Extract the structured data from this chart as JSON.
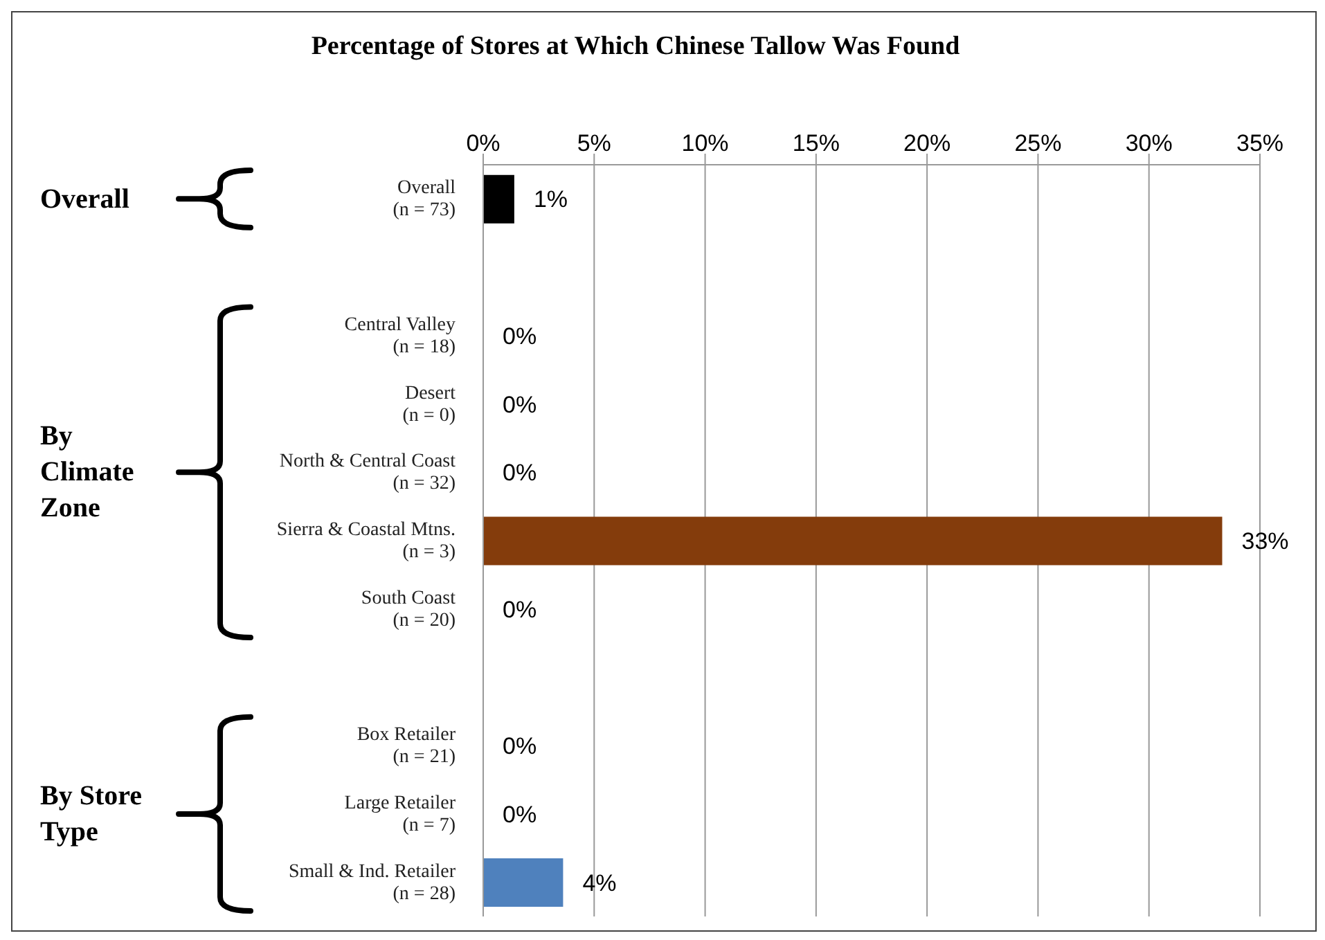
{
  "chart_data": {
    "type": "bar",
    "orientation": "horizontal",
    "title": "Percentage of Stores at Which Chinese Tallow Was Found",
    "categories": [
      "Overall\n(n = 73)",
      null,
      "Central Valley\n(n = 18)",
      "Desert\n(n = 0)",
      "North & Central Coast\n(n = 32)",
      "Sierra & Coastal Mtns.\n(n = 3)",
      "South Coast\n(n = 20)",
      null,
      "Box Retailer\n(n = 21)",
      "Large Retailer\n(n = 7)",
      "Small & Ind. Retailer\n(n = 28)"
    ],
    "values": [
      1.4,
      null,
      0,
      0,
      0,
      33.3,
      0,
      null,
      0,
      0,
      3.6
    ],
    "colors": [
      "#000000",
      null,
      "#843c0c",
      "#843c0c",
      "#843c0c",
      "#843c0c",
      "#843c0c",
      null,
      "#4f81bd",
      "#4f81bd",
      "#4f81bd"
    ],
    "value_labels": [
      "1%",
      null,
      "0%",
      "0%",
      "0%",
      "33%",
      "0%",
      null,
      "0%",
      "0%",
      "4%"
    ],
    "xlim": [
      0,
      35
    ],
    "xticks": [
      {
        "value": 0,
        "label": "0%"
      },
      {
        "value": 5,
        "label": "5%"
      },
      {
        "value": 10,
        "label": "10%"
      },
      {
        "value": 15,
        "label": "15%"
      },
      {
        "value": 20,
        "label": "20%"
      },
      {
        "value": 25,
        "label": "25%"
      },
      {
        "value": 30,
        "label": "30%"
      },
      {
        "value": 35,
        "label": "35%"
      }
    ],
    "grid": "x",
    "legend": false,
    "annotations": [
      "Overall",
      "By Climate Zone",
      "By Store Type"
    ]
  }
}
